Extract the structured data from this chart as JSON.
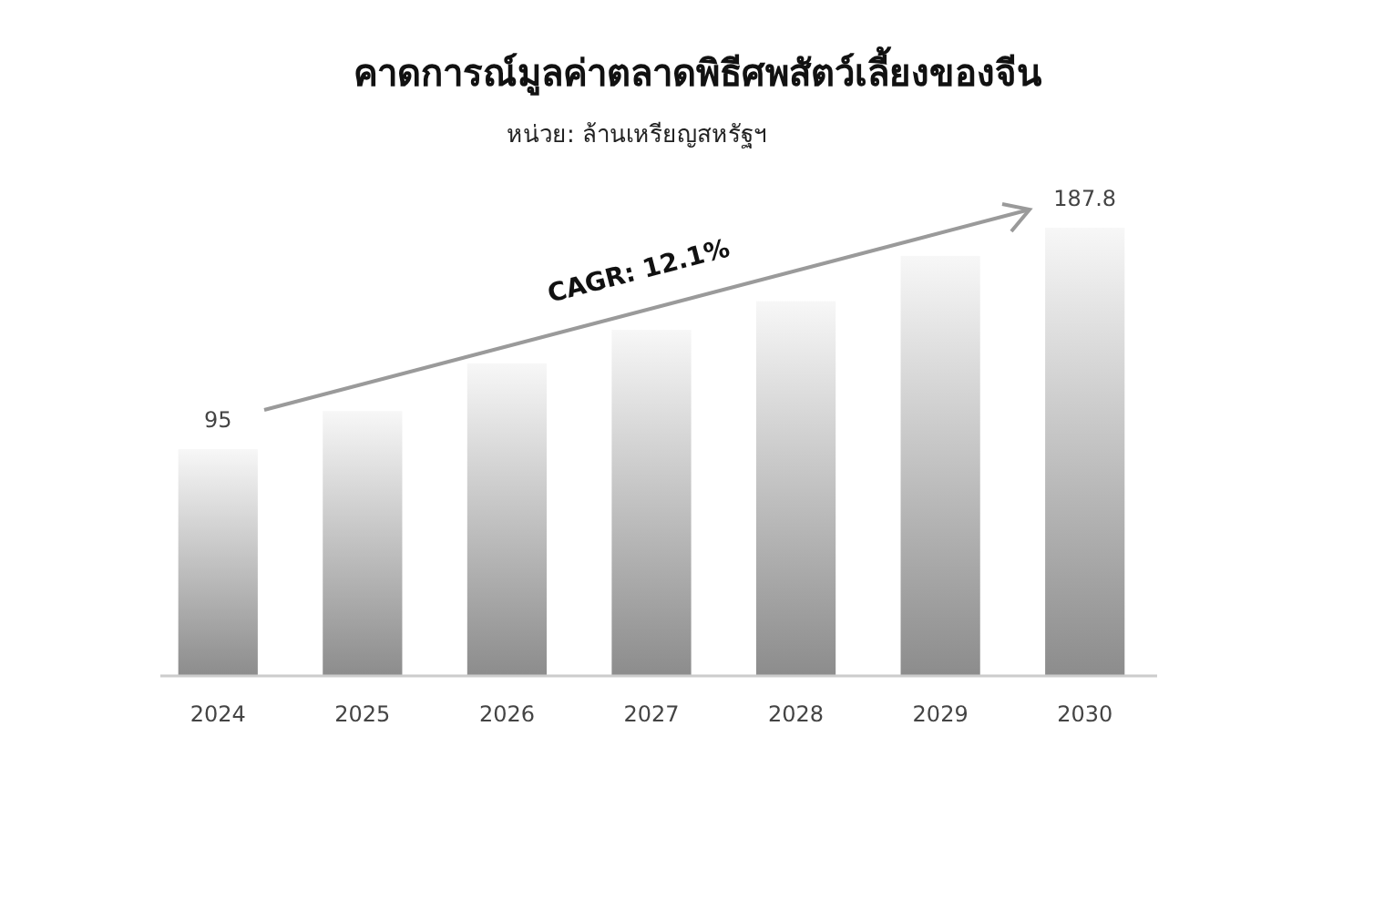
{
  "chart_data": {
    "type": "bar",
    "title": "คาดการณ์มูลค่าตลาดพิธีศพสัตว์เลี้ยงของจีน",
    "subtitle": "หน่วย: ล้านเหรียญสหรัฐฯ",
    "categories": [
      "2024",
      "2025",
      "2026",
      "2027",
      "2028",
      "2029",
      "2030"
    ],
    "values": [
      95,
      111,
      131,
      145,
      157,
      176,
      187.8
    ],
    "value_labels": [
      "95",
      null,
      null,
      null,
      null,
      null,
      "187.8"
    ],
    "color": "#8c8c8c",
    "annotations": [
      "CAGR: 12.1%"
    ]
  }
}
